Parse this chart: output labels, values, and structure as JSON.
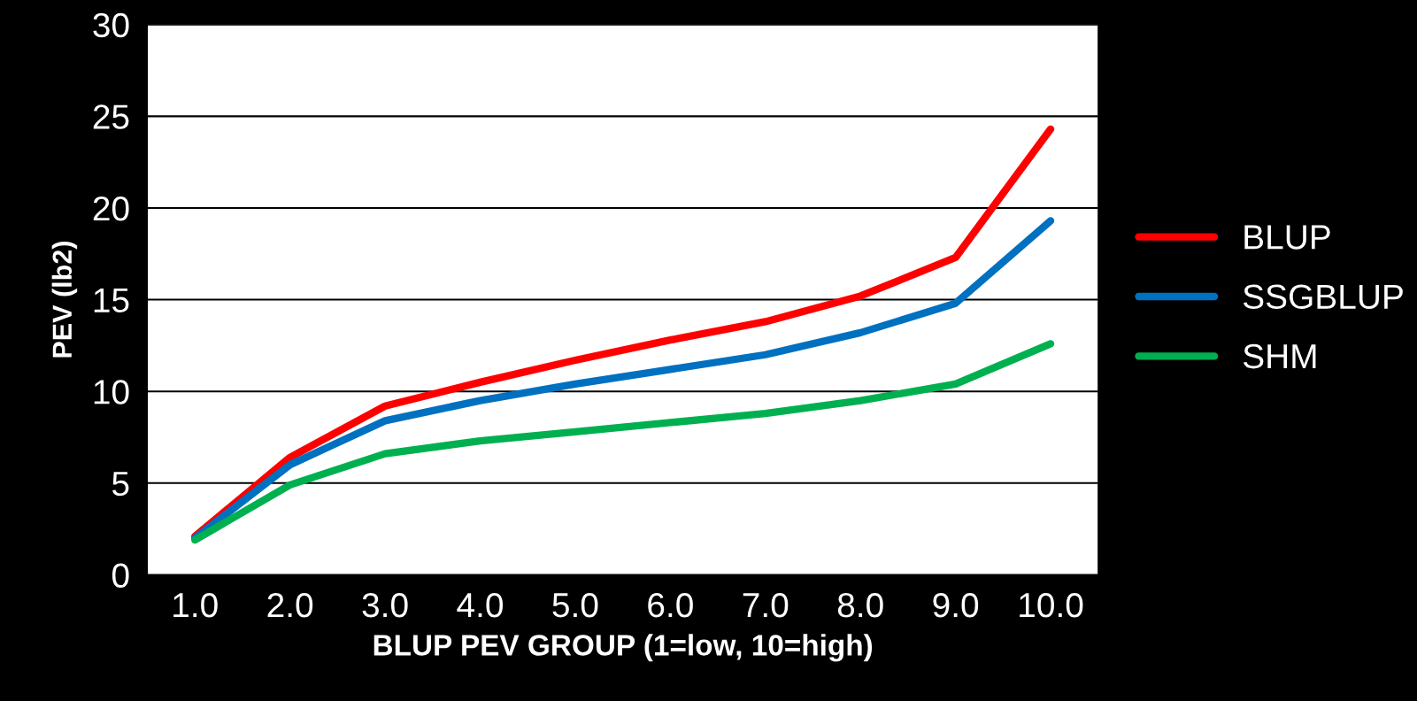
{
  "chart_data": {
    "type": "line",
    "xlabel": "BLUP PEV GROUP (1=low, 10=high)",
    "ylabel": "PEV (lb2)",
    "categories": [
      "1.0",
      "2.0",
      "3.0",
      "4.0",
      "5.0",
      "6.0",
      "7.0",
      "8.0",
      "9.0",
      "10.0"
    ],
    "series": [
      {
        "name": "BLUP",
        "color": "#ff0000",
        "values": [
          2.1,
          6.4,
          9.2,
          10.5,
          11.7,
          12.8,
          13.8,
          15.2,
          17.3,
          24.3
        ]
      },
      {
        "name": "SSGBLUP",
        "color": "#0070c0",
        "values": [
          2.0,
          6.0,
          8.4,
          9.5,
          10.4,
          11.2,
          12.0,
          13.2,
          14.8,
          19.3
        ]
      },
      {
        "name": "SHM",
        "color": "#00b050",
        "values": [
          1.9,
          4.9,
          6.6,
          7.3,
          7.8,
          8.3,
          8.8,
          9.5,
          10.4,
          12.6
        ]
      }
    ],
    "ylim": [
      0,
      30
    ],
    "yticks": [
      0,
      5,
      10,
      15,
      20,
      25,
      30
    ],
    "grid": "y",
    "legend": "right",
    "marker": "none",
    "line_style": "solid"
  }
}
